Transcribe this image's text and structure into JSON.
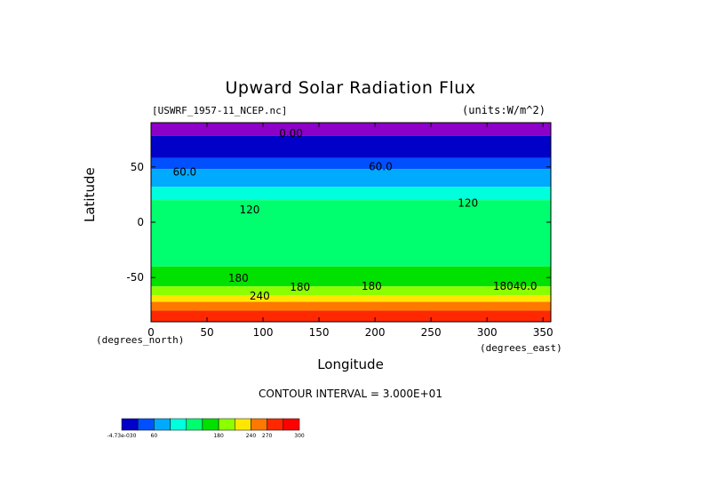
{
  "chart_data": {
    "type": "heatmap",
    "title": "Upward Solar Radiation Flux",
    "file_label": "[USWRF_1957-11_NCEP.nc]",
    "units_label": "(units:W/m^2)",
    "xlabel": "Longitude",
    "ylabel": "Latitude",
    "x_unit": "(degrees_east)",
    "y_unit": "(degrees_north)",
    "xlim": [
      0,
      357
    ],
    "ylim": [
      -90,
      90
    ],
    "x_ticks": [
      0,
      50,
      100,
      150,
      200,
      250,
      300,
      350
    ],
    "y_ticks": [
      50,
      0,
      -50
    ],
    "contour_interval_text": "CONTOUR INTERVAL = 3.000E+01",
    "contour_labels": [
      {
        "text": "0.00",
        "lon": 125,
        "lat": 77
      },
      {
        "text": "60.0",
        "lon": 30,
        "lat": 42
      },
      {
        "text": "60.0",
        "lon": 205,
        "lat": 47
      },
      {
        "text": "120",
        "lon": 88,
        "lat": 8
      },
      {
        "text": "120",
        "lon": 283,
        "lat": 14
      },
      {
        "text": "180",
        "lon": 78,
        "lat": -54
      },
      {
        "text": "180",
        "lon": 133,
        "lat": -62
      },
      {
        "text": "180",
        "lon": 197,
        "lat": -61
      },
      {
        "text": "18040.0",
        "lon": 325,
        "lat": -61
      },
      {
        "text": "240",
        "lon": 97,
        "lat": -70
      }
    ],
    "latitude_bands": [
      {
        "lat_top": 90,
        "lat_bottom": 78,
        "value": 0
      },
      {
        "lat_top": 78,
        "lat_bottom": 58,
        "value": 15
      },
      {
        "lat_top": 58,
        "lat_bottom": 48,
        "value": 45
      },
      {
        "lat_top": 48,
        "lat_bottom": 32,
        "value": 75
      },
      {
        "lat_top": 32,
        "lat_bottom": 20,
        "value": 105
      },
      {
        "lat_top": 20,
        "lat_bottom": -40,
        "value": 135
      },
      {
        "lat_top": -40,
        "lat_bottom": -58,
        "value": 165
      },
      {
        "lat_top": -58,
        "lat_bottom": -66,
        "value": 195
      },
      {
        "lat_top": -66,
        "lat_bottom": -72,
        "value": 225
      },
      {
        "lat_top": -72,
        "lat_bottom": -80,
        "value": 255
      },
      {
        "lat_top": -80,
        "lat_bottom": -90,
        "value": 285
      }
    ],
    "colorbar": {
      "colors": [
        "#0000c8",
        "#0050ff",
        "#00aaff",
        "#00ffdc",
        "#00ff6e",
        "#00e100",
        "#8cff00",
        "#ffe600",
        "#ff7800",
        "#ff2800",
        "#ff0000"
      ],
      "tick_labels": [
        "-4.73e-030",
        "60",
        "180",
        "240",
        "270",
        "300"
      ],
      "tick_indices": [
        0,
        2,
        6,
        8,
        9,
        10
      ]
    }
  }
}
